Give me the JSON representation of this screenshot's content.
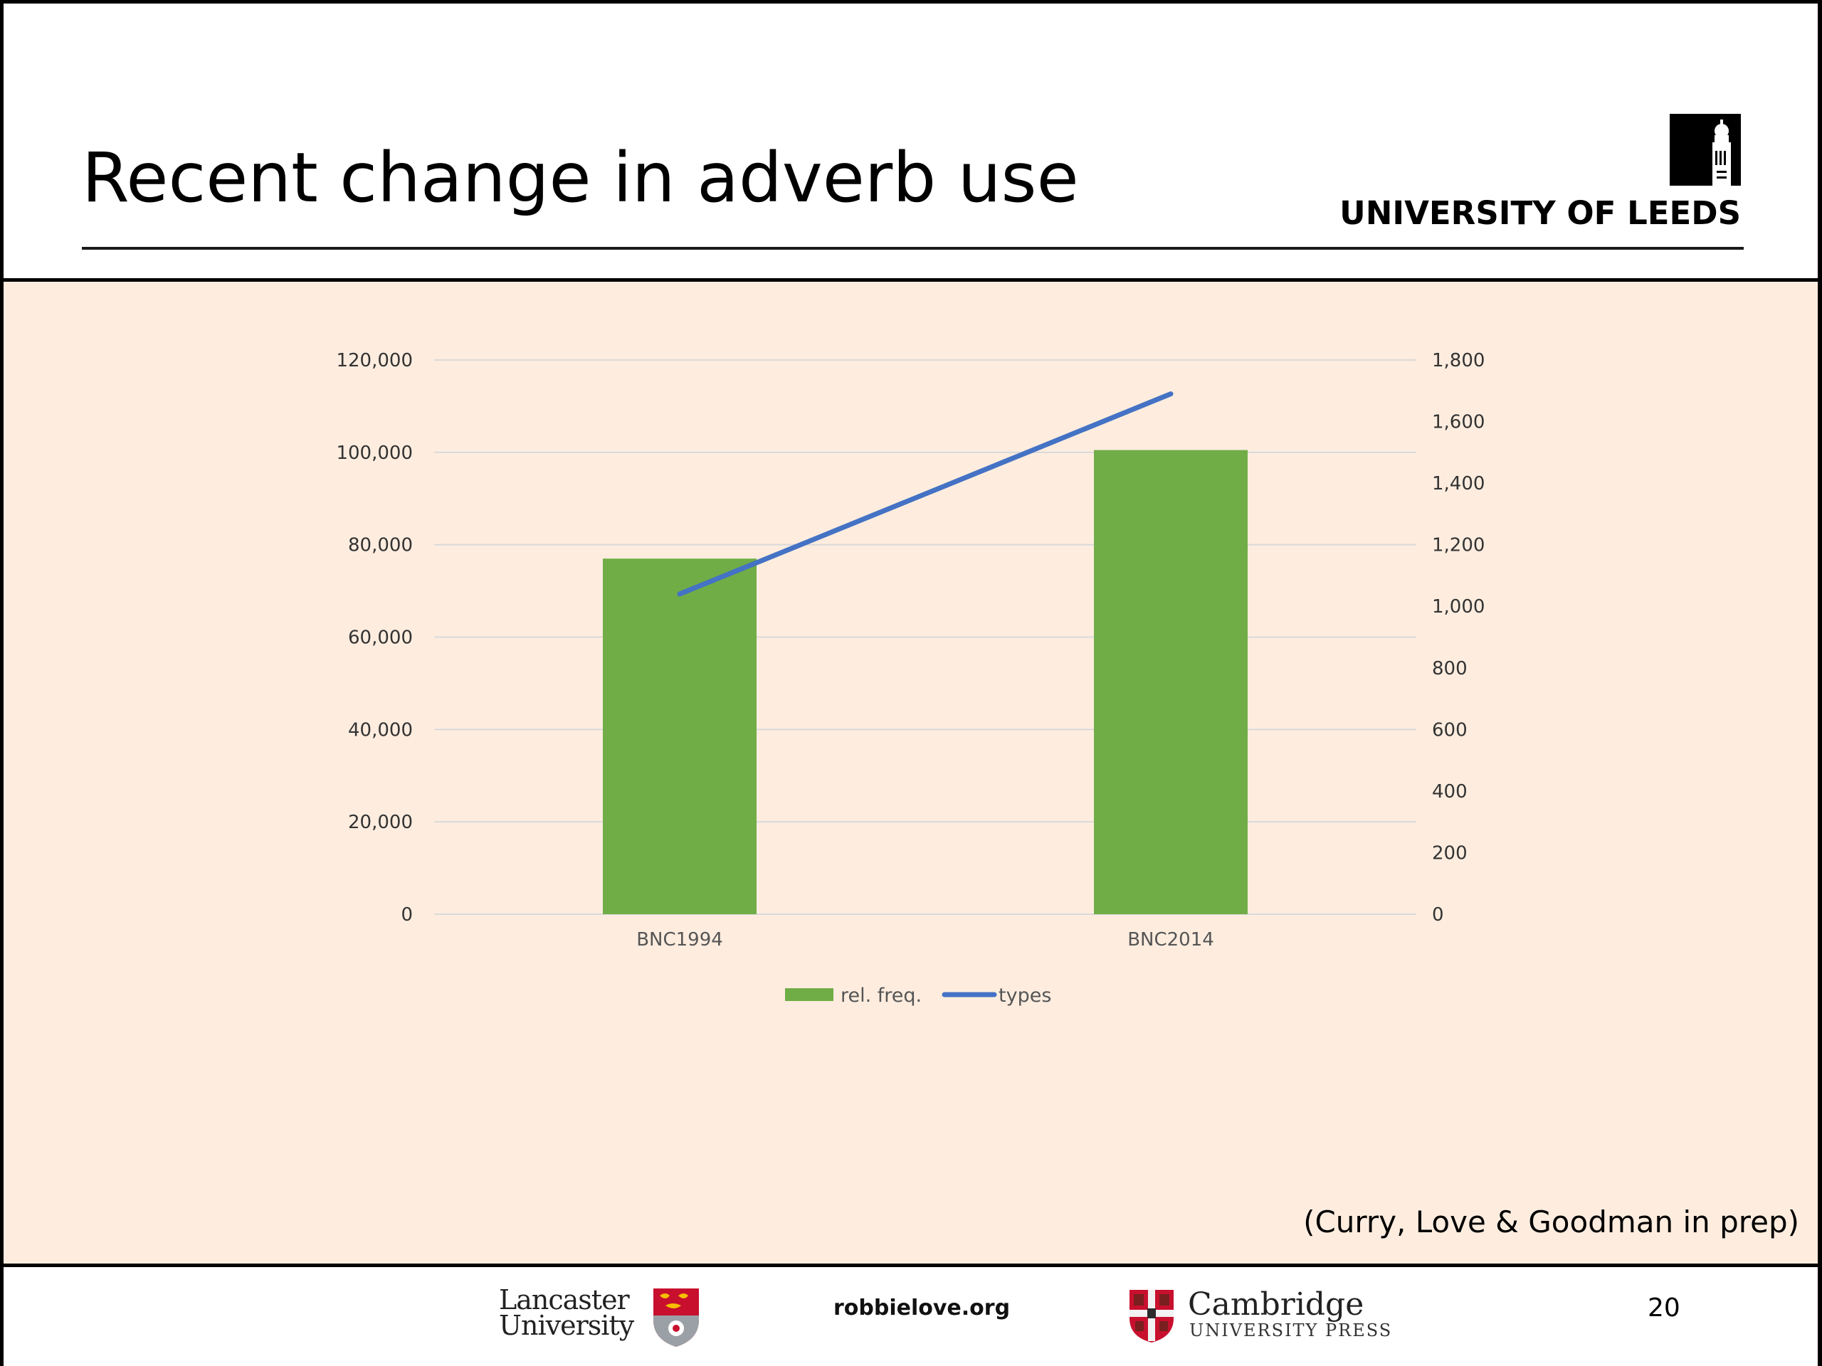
{
  "slide": {
    "title": "Recent change in adverb use",
    "logo_text": "UNIVERSITY OF LEEDS",
    "citation": "(Curry, Love & Goodman in prep)",
    "footer": {
      "lancaster_line1": "Lancaster",
      "lancaster_line2": "University",
      "website": "robbielove.org",
      "cambridge_name": "Cambridge",
      "cambridge_press": "UNIVERSITY PRESS",
      "page_number": "20"
    }
  },
  "chart_data": {
    "type": "bar",
    "categories": [
      "BNC1994",
      "BNC2014"
    ],
    "series": [
      {
        "name": "rel. freq.",
        "type": "bar",
        "axis": "left",
        "color": "#70ad47",
        "values": [
          77000,
          100500
        ]
      },
      {
        "name": "types",
        "type": "line",
        "axis": "right",
        "color": "#4472c4",
        "values": [
          1040,
          1690
        ]
      }
    ],
    "y_left": {
      "min": 0,
      "max": 120000,
      "ticks": [
        0,
        20000,
        40000,
        60000,
        80000,
        100000,
        120000
      ],
      "tick_labels": [
        "0",
        "20,000",
        "40,000",
        "60,000",
        "80,000",
        "100,000",
        "120,000"
      ]
    },
    "y_right": {
      "min": 0,
      "max": 1800,
      "ticks": [
        0,
        200,
        400,
        600,
        800,
        1000,
        1200,
        1400,
        1600,
        1800
      ],
      "tick_labels": [
        "0",
        "200",
        "400",
        "600",
        "800",
        "1,000",
        "1,200",
        "1,400",
        "1,600",
        "1,800"
      ]
    },
    "grid": true,
    "legend": {
      "position": "bottom",
      "entries": [
        "rel. freq.",
        "types"
      ]
    },
    "colors": {
      "gridline": "#d9d9d9",
      "background": "#feeddf"
    }
  }
}
